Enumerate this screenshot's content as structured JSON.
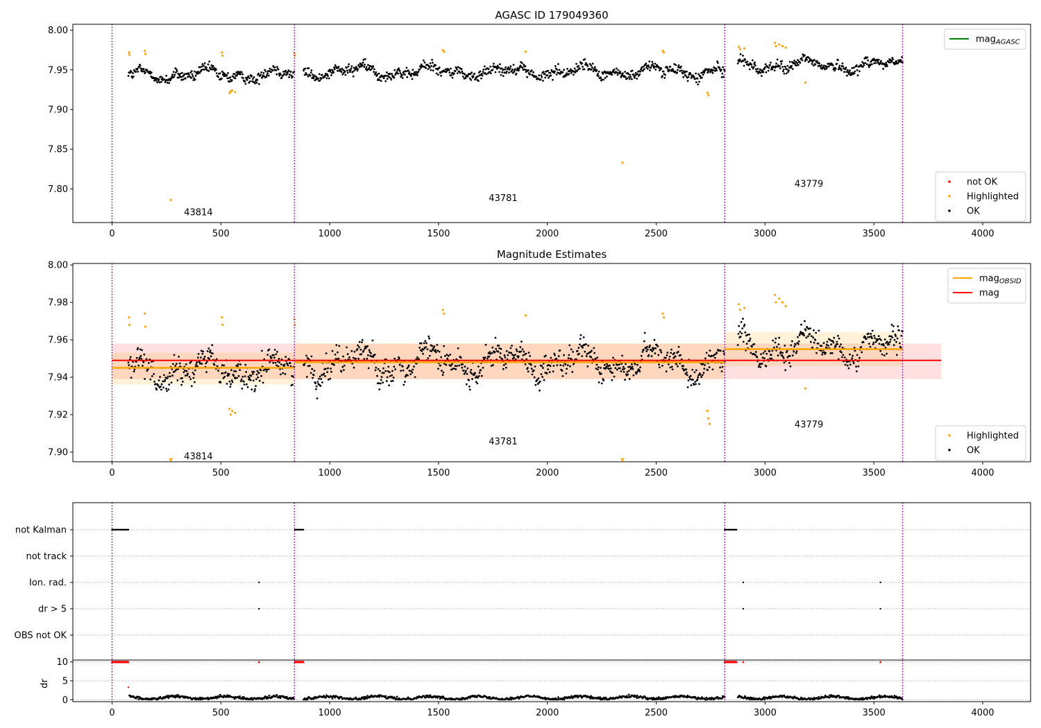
{
  "chart_data": [
    {
      "id": "agasc",
      "type": "scatter",
      "title": "AGASC ID 179049360",
      "xlabel": "",
      "ylabel": "",
      "xlim": [
        -180,
        4220
      ],
      "ylim": [
        7.7575,
        8.0075
      ],
      "xticks": [
        0,
        500,
        1000,
        1500,
        2000,
        2500,
        3000,
        3500,
        4000
      ],
      "yticks": [
        7.8,
        7.85,
        7.9,
        7.95,
        8.0
      ],
      "ytick_labels": [
        "7.80",
        "7.85",
        "7.90",
        "7.95",
        "8.00"
      ],
      "obsid_boundaries": [
        0,
        838,
        2815,
        3632
      ],
      "obsid_labels": [
        {
          "label": "43814",
          "x": 420,
          "y": 7.771
        },
        {
          "label": "43781",
          "x": 1820,
          "y": 7.789
        },
        {
          "label": "43779",
          "x": 3225,
          "y": 7.807
        }
      ],
      "reference_lines": [
        {
          "name": "mag_AGASC",
          "color": "#008000",
          "y": 7.948,
          "visible": false
        }
      ],
      "legends": [
        {
          "position": "top-right",
          "entries": [
            {
              "label": "mag",
              "sub": "AGASC",
              "kind": "line",
              "color": "#008000"
            }
          ]
        },
        {
          "position": "bottom-right",
          "entries": [
            {
              "label": "not OK",
              "kind": "dot",
              "color": "#ff0000"
            },
            {
              "label": "Highlighted",
              "kind": "dot",
              "color": "#ffa500"
            },
            {
              "label": "OK",
              "kind": "dot",
              "color": "#000000"
            }
          ]
        }
      ],
      "series": [
        {
          "name": "OK",
          "color": "#000000",
          "segments": [
            {
              "x": [
                75,
                838
              ],
              "mean": 7.944
            },
            {
              "x": [
                880,
                2815
              ],
              "mean": 7.948
            },
            {
              "x": [
                2875,
                3632
              ],
              "mean": 7.956
            }
          ]
        },
        {
          "name": "Highlighted",
          "color": "#ffa500",
          "points": [
            [
              78,
              7.972
            ],
            [
              80,
              7.969
            ],
            [
              150,
              7.974
            ],
            [
              153,
              7.97
            ],
            [
              270,
              7.786
            ],
            [
              505,
              7.972
            ],
            [
              507,
              7.968
            ],
            [
              540,
              7.921
            ],
            [
              545,
              7.923
            ],
            [
              552,
              7.924
            ],
            [
              565,
              7.922
            ],
            [
              838,
              7.971
            ],
            [
              840,
              7.968
            ],
            [
              1520,
              7.975
            ],
            [
              1525,
              7.973
            ],
            [
              1900,
              7.973
            ],
            [
              2345,
              7.833
            ],
            [
              2530,
              7.974
            ],
            [
              2535,
              7.972
            ],
            [
              2735,
              7.921
            ],
            [
              2740,
              7.918
            ],
            [
              2880,
              7.979
            ],
            [
              2885,
              7.976
            ],
            [
              2905,
              7.977
            ],
            [
              3045,
              7.984
            ],
            [
              3050,
              7.98
            ],
            [
              3065,
              7.982
            ],
            [
              3080,
              7.98
            ],
            [
              3095,
              7.978
            ],
            [
              3185,
              7.934
            ]
          ]
        }
      ]
    },
    {
      "id": "estimates",
      "type": "scatter",
      "title": "Magnitude Estimates",
      "xlabel": "",
      "ylabel": "",
      "xlim": [
        -180,
        4220
      ],
      "ylim": [
        7.8948,
        8.0008
      ],
      "xticks": [
        0,
        500,
        1000,
        1500,
        2000,
        2500,
        3000,
        3500,
        4000
      ],
      "yticks": [
        7.9,
        7.92,
        7.94,
        7.96,
        7.98,
        8.0
      ],
      "ytick_labels": [
        "7.90",
        "7.92",
        "7.94",
        "7.96",
        "7.98",
        "8.00"
      ],
      "obsid_boundaries": [
        0,
        838,
        2815,
        3632
      ],
      "obsid_labels": [
        {
          "label": "43814",
          "x": 420,
          "y": 7.898
        },
        {
          "label": "43781",
          "x": 1820,
          "y": 7.906
        },
        {
          "label": "43779",
          "x": 3225,
          "y": 7.915
        }
      ],
      "mag": {
        "value": 7.949,
        "band": [
          7.939,
          7.958
        ],
        "x": [
          0,
          3810
        ],
        "color": "#ff0000"
      },
      "mag_obsid": [
        {
          "x": [
            0,
            838
          ],
          "value": 7.945,
          "band": [
            7.936,
            7.953
          ]
        },
        {
          "x": [
            838,
            2815
          ],
          "value": 7.948,
          "band": [
            7.939,
            7.958
          ]
        },
        {
          "x": [
            2815,
            3632
          ],
          "value": 7.955,
          "band": [
            7.946,
            7.964
          ]
        }
      ],
      "legends": [
        {
          "position": "top-right",
          "entries": [
            {
              "label": "mag",
              "sub": "OBSID",
              "kind": "line",
              "color": "#ffa500"
            },
            {
              "label": "mag",
              "kind": "line",
              "color": "#ff0000"
            }
          ]
        },
        {
          "position": "bottom-right",
          "entries": [
            {
              "label": "Highlighted",
              "kind": "dot",
              "color": "#ffa500"
            },
            {
              "label": "OK",
              "kind": "dot",
              "color": "#000000"
            }
          ]
        }
      ],
      "series": [
        {
          "name": "OK",
          "color": "#000000",
          "segments": [
            {
              "x": [
                75,
                838
              ],
              "mean": 7.944
            },
            {
              "x": [
                880,
                2815
              ],
              "mean": 7.948
            },
            {
              "x": [
                2875,
                3632
              ],
              "mean": 7.956
            }
          ]
        },
        {
          "name": "Highlighted",
          "color": "#ffa500",
          "points": [
            [
              78,
              7.972
            ],
            [
              80,
              7.968
            ],
            [
              150,
              7.974
            ],
            [
              153,
              7.967
            ],
            [
              505,
              7.972
            ],
            [
              507,
              7.968
            ],
            [
              540,
              7.923
            ],
            [
              545,
              7.92
            ],
            [
              552,
              7.922
            ],
            [
              565,
              7.921
            ],
            [
              838,
              7.971
            ],
            [
              840,
              7.968
            ],
            [
              1520,
              7.976
            ],
            [
              1525,
              7.974
            ],
            [
              1900,
              7.973
            ],
            [
              2530,
              7.974
            ],
            [
              2535,
              7.972
            ],
            [
              2735,
              7.922
            ],
            [
              2740,
              7.918
            ],
            [
              2745,
              7.915
            ],
            [
              2880,
              7.979
            ],
            [
              2885,
              7.976
            ],
            [
              2905,
              7.977
            ],
            [
              3045,
              7.984
            ],
            [
              3050,
              7.98
            ],
            [
              3065,
              7.982
            ],
            [
              3080,
              7.98
            ],
            [
              3095,
              7.978
            ],
            [
              3185,
              7.934
            ]
          ]
        },
        {
          "name": "off-scale",
          "color": "#ffa500",
          "marker": "triangle-down",
          "points": [
            [
              270,
              7.8955
            ],
            [
              2345,
              7.8955
            ]
          ]
        }
      ]
    },
    {
      "id": "flags",
      "type": "scatter",
      "title": "",
      "xlim": [
        -180,
        4220
      ],
      "categories": [
        "not Kalman",
        "not track",
        "Ion. rad.",
        "dr > 5",
        "OBS not OK"
      ],
      "obsid_boundaries": [
        0,
        838,
        2815,
        3632
      ],
      "flags": [
        {
          "row": "not Kalman",
          "ranges": [
            [
              0,
              75
            ],
            [
              840,
              880
            ],
            [
              2815,
              2870
            ]
          ]
        },
        {
          "row": "not track",
          "ranges": []
        },
        {
          "row": "Ion. rad.",
          "points": [
            675,
            2900,
            3530
          ]
        },
        {
          "row": "dr > 5",
          "points": [
            675,
            2900,
            3530
          ]
        },
        {
          "row": "OBS not OK",
          "points": []
        }
      ]
    },
    {
      "id": "dr",
      "type": "scatter",
      "ylabel": "dr",
      "xlim": [
        -180,
        4220
      ],
      "ylim": [
        -0.5,
        10.5
      ],
      "xticks": [
        0,
        500,
        1000,
        1500,
        2000,
        2500,
        3000,
        3500,
        4000
      ],
      "yticks": [
        0,
        5,
        10
      ],
      "ytick_labels": [
        "0",
        "5",
        "10"
      ],
      "obsid_boundaries": [
        0,
        838,
        2815,
        3632
      ],
      "clipped": {
        "color": "#ff0000",
        "value": 10,
        "ranges": [
          [
            0,
            75
          ],
          [
            840,
            880
          ],
          [
            2815,
            2870
          ]
        ],
        "points": [
          675,
          2900,
          3530
        ]
      },
      "outliers": [
        [
          75,
          3.3
        ]
      ],
      "ok": {
        "color": "#000000",
        "segments": [
          [
            80,
            838
          ],
          [
            880,
            2815
          ],
          [
            2875,
            3632
          ]
        ],
        "mean": 0.55
      }
    }
  ]
}
